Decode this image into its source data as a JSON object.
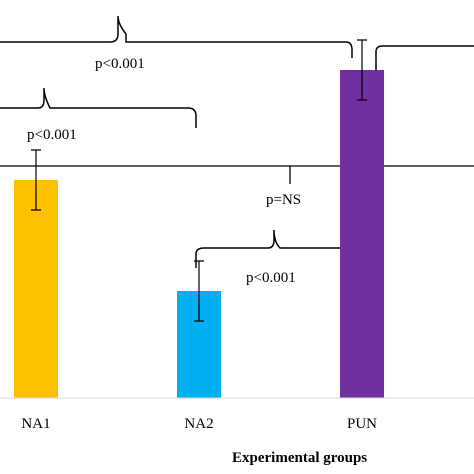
{
  "chart_data": {
    "type": "bar",
    "title": "",
    "xlabel": "Experimental groups",
    "ylabel": "",
    "categories": [
      "NA1",
      "NA2",
      "PUN"
    ],
    "values": [
      180,
      291,
      70
    ],
    "errors": [
      30,
      30,
      30
    ],
    "colors": [
      "#FFC000",
      "#00B0F0",
      "#7030A0"
    ],
    "comparisons": [
      {
        "label": "p<0.001"
      },
      {
        "label": "p<0.001"
      },
      {
        "label": "p=NS"
      },
      {
        "label": "p<0.001"
      }
    ]
  }
}
